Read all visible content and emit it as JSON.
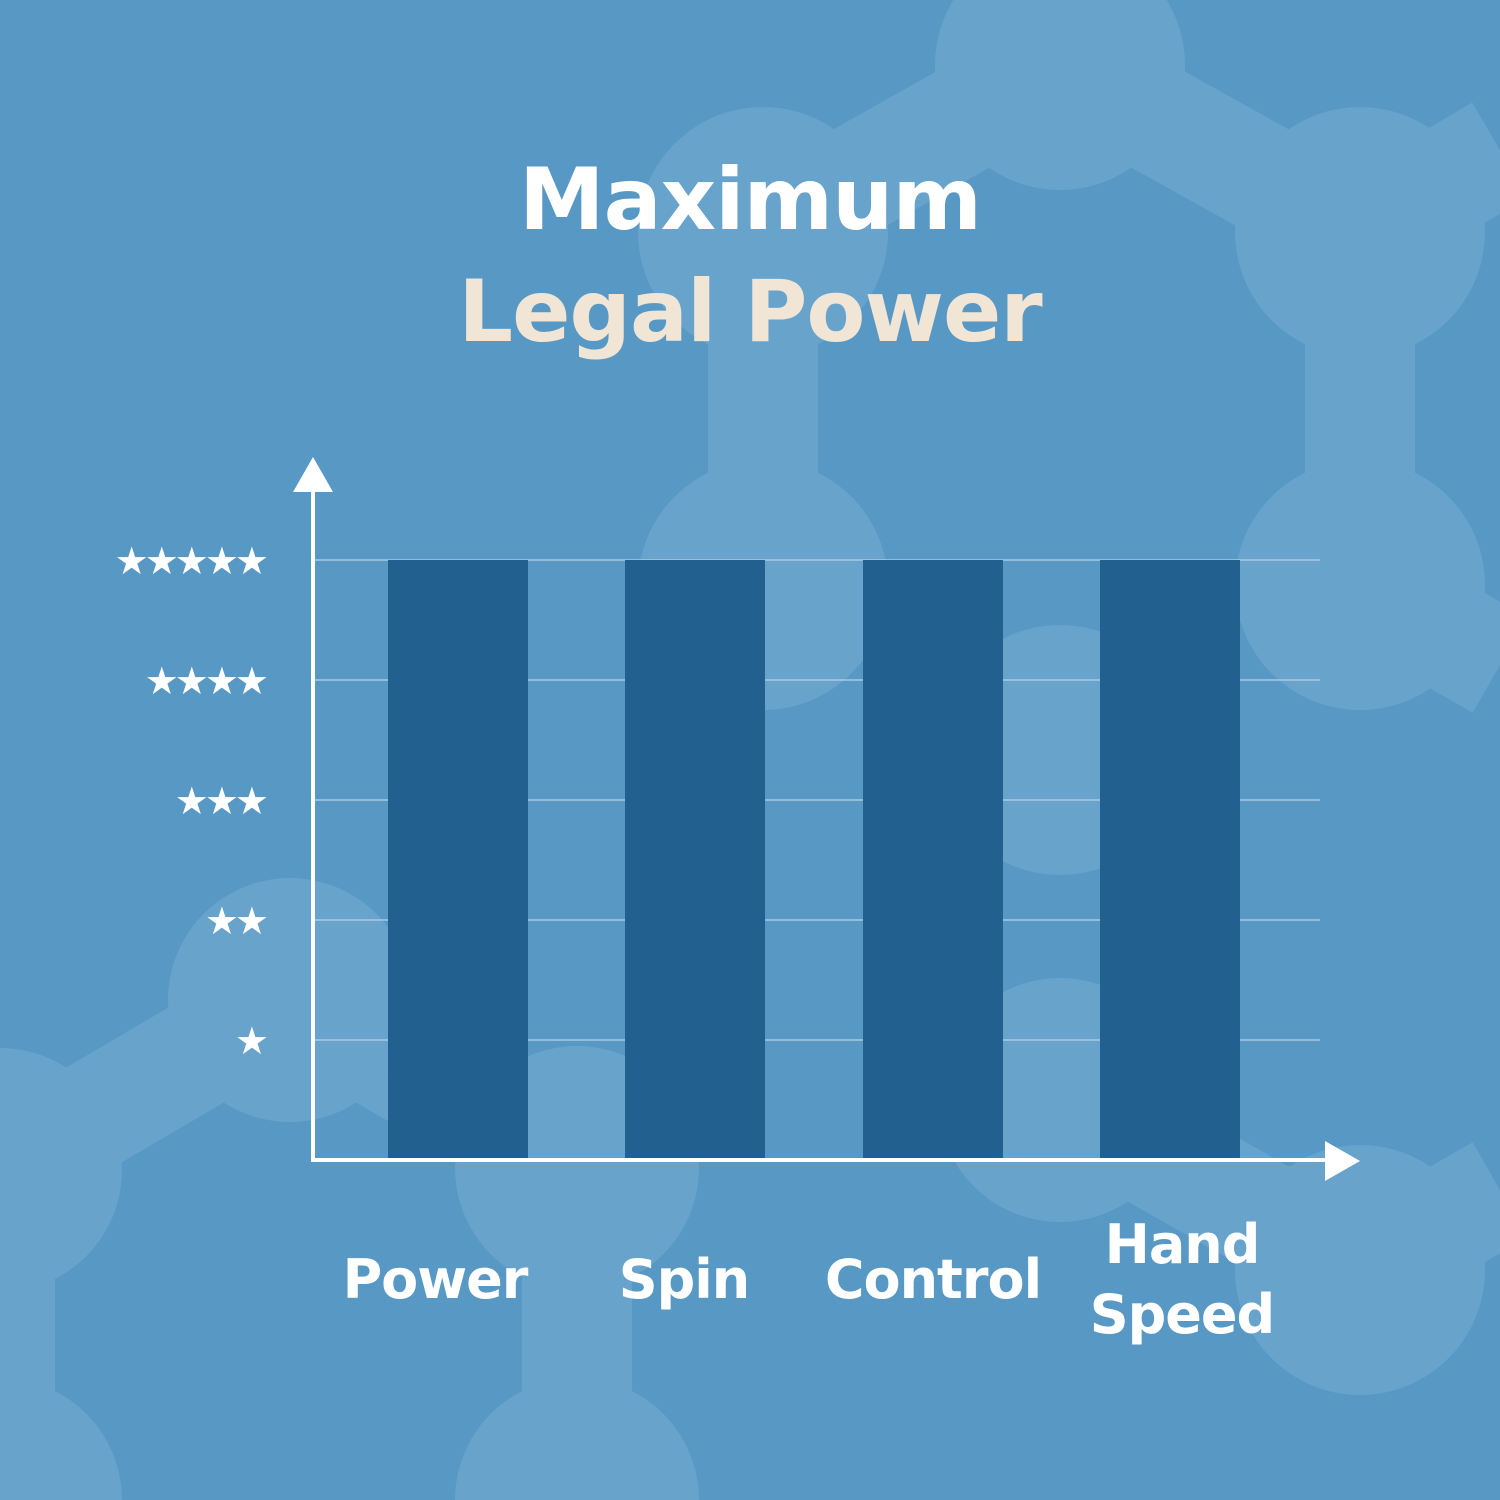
{
  "title": {
    "line1": "Maximum",
    "line2": "Legal Power"
  },
  "colors": {
    "background": "#5898c5",
    "molecule": "#68a3cb",
    "bar": "#22618f",
    "title_line1": "#ffffff",
    "title_line2": "#f1e5d5",
    "axis": "#ffffff",
    "grid": "#a8c9e2"
  },
  "chart_data": {
    "type": "bar",
    "title": "Maximum Legal Power",
    "categories": [
      "Power",
      "Spin",
      "Control",
      "Hand Speed"
    ],
    "category_labels": [
      [
        "Power"
      ],
      [
        "Spin"
      ],
      [
        "Control"
      ],
      [
        "Hand",
        "Speed"
      ]
    ],
    "values": [
      5,
      5,
      5,
      5
    ],
    "ylim": [
      0,
      5
    ],
    "y_ticks": [
      1,
      2,
      3,
      4,
      5
    ],
    "y_tick_labels": [
      "★",
      "★★",
      "★★★",
      "★★★★",
      "★★★★★"
    ],
    "grid": true,
    "xlabel": "",
    "ylabel": ""
  }
}
